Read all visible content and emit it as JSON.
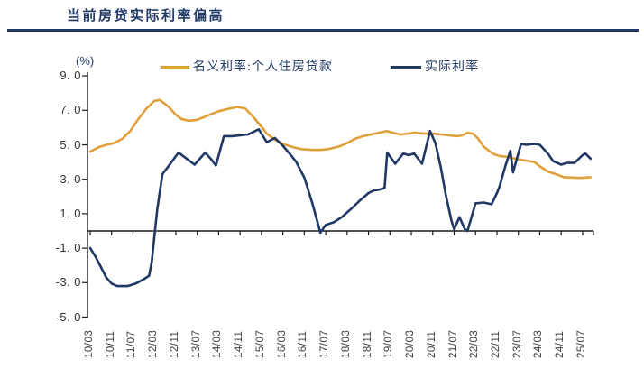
{
  "page": {
    "title": "当前房贷实际利率偏高"
  },
  "legend": {
    "unit_label": "(%)",
    "nominal_label": "名义利率:个人住房贷款",
    "real_label": "实际利率"
  },
  "colors": {
    "navy": "#1F3864",
    "orange": "#DFA03A",
    "axis": "#1a1a1a",
    "tick_label": "#404040"
  },
  "chart_data": {
    "type": "line",
    "title": "当前房贷实际利率偏高",
    "unit": "(%)",
    "ylim": [
      -5.0,
      9.0
    ],
    "y_ticks": [
      9.0,
      7.0,
      5.0,
      3.0,
      1.0,
      -1.0,
      -3.0,
      -5.0
    ],
    "y_tick_labels": [
      "9. 0",
      "7. 0",
      "5. 0",
      "3. 0",
      "1. 0",
      "-1. 0",
      "-3. 0",
      "-5. 0"
    ],
    "x_tick_labels": [
      "10/03",
      "10/11",
      "11/07",
      "12/03",
      "12/11",
      "13/07",
      "14/03",
      "14/11",
      "15/07",
      "16/03",
      "16/11",
      "17/07",
      "18/03",
      "18/11",
      "19/07",
      "20/03",
      "20/11",
      "21/07",
      "22/03",
      "22/11",
      "23/07",
      "24/03",
      "24/11",
      "25/07"
    ],
    "x_months_per_tick": 8,
    "grid": false,
    "legend_position": "top",
    "series": [
      {
        "name": "名义利率:个人住房贷款",
        "color": "#DFA03A",
        "points": [
          [
            0,
            4.6
          ],
          [
            3,
            4.85
          ],
          [
            6,
            5.0
          ],
          [
            9,
            5.1
          ],
          [
            12,
            5.35
          ],
          [
            15,
            5.8
          ],
          [
            18,
            6.5
          ],
          [
            21,
            7.1
          ],
          [
            24,
            7.55
          ],
          [
            26,
            7.6
          ],
          [
            29,
            7.25
          ],
          [
            32,
            6.75
          ],
          [
            34,
            6.5
          ],
          [
            37,
            6.4
          ],
          [
            40,
            6.45
          ],
          [
            44,
            6.7
          ],
          [
            48,
            6.95
          ],
          [
            52,
            7.1
          ],
          [
            55,
            7.2
          ],
          [
            58,
            7.1
          ],
          [
            61,
            6.6
          ],
          [
            64,
            6.05
          ],
          [
            66,
            5.65
          ],
          [
            69,
            5.3
          ],
          [
            72,
            5.05
          ],
          [
            76,
            4.85
          ],
          [
            79,
            4.75
          ],
          [
            83,
            4.7
          ],
          [
            86,
            4.7
          ],
          [
            89,
            4.75
          ],
          [
            93,
            4.9
          ],
          [
            96,
            5.1
          ],
          [
            99,
            5.35
          ],
          [
            102,
            5.5
          ],
          [
            105,
            5.6
          ],
          [
            108,
            5.7
          ],
          [
            111,
            5.8
          ],
          [
            113,
            5.7
          ],
          [
            116,
            5.6
          ],
          [
            119,
            5.65
          ],
          [
            121,
            5.7
          ],
          [
            125,
            5.65
          ],
          [
            128,
            5.65
          ],
          [
            131,
            5.6
          ],
          [
            134,
            5.55
          ],
          [
            137,
            5.5
          ],
          [
            139,
            5.55
          ],
          [
            141,
            5.7
          ],
          [
            143,
            5.65
          ],
          [
            145,
            5.35
          ],
          [
            147,
            4.9
          ],
          [
            149,
            4.65
          ],
          [
            151,
            4.45
          ],
          [
            153,
            4.35
          ],
          [
            156,
            4.3
          ],
          [
            160,
            4.15
          ],
          [
            164,
            4.05
          ],
          [
            166,
            4.0
          ],
          [
            168,
            3.75
          ],
          [
            171,
            3.45
          ],
          [
            174,
            3.3
          ],
          [
            177,
            3.12
          ],
          [
            180,
            3.1
          ],
          [
            183,
            3.08
          ],
          [
            187,
            3.12
          ]
        ]
      },
      {
        "name": "实际利率",
        "color": "#1F3864",
        "points": [
          [
            0,
            -1.0
          ],
          [
            2,
            -1.5
          ],
          [
            4,
            -2.1
          ],
          [
            6,
            -2.7
          ],
          [
            8,
            -3.05
          ],
          [
            10,
            -3.2
          ],
          [
            14,
            -3.2
          ],
          [
            17,
            -3.05
          ],
          [
            20,
            -2.8
          ],
          [
            22,
            -2.6
          ],
          [
            23,
            -1.8
          ],
          [
            24,
            -0.3
          ],
          [
            25,
            1.2
          ],
          [
            27,
            3.3
          ],
          [
            29,
            3.7
          ],
          [
            33,
            4.55
          ],
          [
            36,
            4.2
          ],
          [
            39,
            3.85
          ],
          [
            43,
            4.55
          ],
          [
            45,
            4.2
          ],
          [
            47,
            3.8
          ],
          [
            50,
            5.5
          ],
          [
            53,
            5.5
          ],
          [
            56,
            5.55
          ],
          [
            59,
            5.6
          ],
          [
            63,
            5.9
          ],
          [
            66,
            5.15
          ],
          [
            69,
            5.4
          ],
          [
            72,
            4.95
          ],
          [
            75,
            4.4
          ],
          [
            77,
            4.0
          ],
          [
            80,
            3.1
          ],
          [
            83,
            1.6
          ],
          [
            86,
            -0.1
          ],
          [
            88,
            0.35
          ],
          [
            91,
            0.5
          ],
          [
            94,
            0.8
          ],
          [
            98,
            1.35
          ],
          [
            101,
            1.8
          ],
          [
            104,
            2.2
          ],
          [
            106,
            2.35
          ],
          [
            108,
            2.4
          ],
          [
            110,
            2.5
          ],
          [
            111,
            4.55
          ],
          [
            114,
            3.9
          ],
          [
            117,
            4.5
          ],
          [
            119,
            4.4
          ],
          [
            121,
            4.5
          ],
          [
            124,
            3.9
          ],
          [
            127,
            5.8
          ],
          [
            129,
            5.1
          ],
          [
            131,
            3.7
          ],
          [
            133,
            2.0
          ],
          [
            135,
            0.6
          ],
          [
            136,
            0.1
          ],
          [
            138,
            0.8
          ],
          [
            140,
            0.1
          ],
          [
            141,
            0.0
          ],
          [
            144,
            1.6
          ],
          [
            147,
            1.65
          ],
          [
            150,
            1.55
          ],
          [
            152,
            2.2
          ],
          [
            153,
            2.6
          ],
          [
            155,
            3.7
          ],
          [
            157,
            4.65
          ],
          [
            158,
            3.4
          ],
          [
            161,
            5.05
          ],
          [
            163,
            5.0
          ],
          [
            166,
            5.05
          ],
          [
            168,
            5.0
          ],
          [
            171,
            4.5
          ],
          [
            173,
            4.05
          ],
          [
            176,
            3.85
          ],
          [
            178,
            3.95
          ],
          [
            181,
            3.95
          ],
          [
            184,
            4.4
          ],
          [
            185,
            4.5
          ],
          [
            187,
            4.2
          ]
        ]
      }
    ]
  }
}
